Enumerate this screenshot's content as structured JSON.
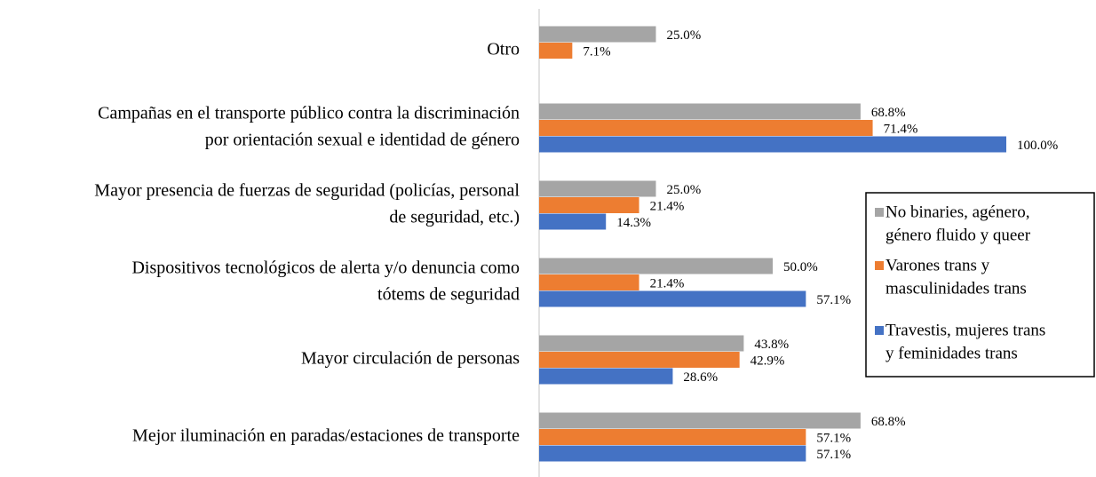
{
  "chart_data": {
    "type": "hbar",
    "categories": [
      [
        "Otro"
      ],
      [
        "Campañas en el transporte público contra la discriminación",
        "por orientación sexual e identidad de género"
      ],
      [
        "Mayor presencia de fuerzas de seguridad (policías, personal",
        "de seguridad, etc.)"
      ],
      [
        "Dispositivos tecnológicos de alerta y/o denuncia como",
        "tótems de seguridad"
      ],
      [
        "Mayor circulación de personas"
      ],
      [
        "Mejor iluminación en paradas/estaciones de transporte"
      ]
    ],
    "series": [
      {
        "name": [
          "No binaries, agénero,",
          "género fluido y queer"
        ],
        "color": "#a5a5a5",
        "values": [
          25.0,
          68.8,
          25.0,
          50.0,
          43.8,
          68.8
        ],
        "value_labels": [
          "25.0%",
          "68.8%",
          "25.0%",
          "50.0%",
          "43.8%",
          "68.8%"
        ]
      },
      {
        "name": [
          "Varones trans y",
          "masculinidades trans"
        ],
        "color": "#ed7d31",
        "values": [
          7.1,
          71.4,
          21.4,
          21.4,
          42.9,
          57.1
        ],
        "value_labels": [
          "7.1%",
          "71.4%",
          "21.4%",
          "21.4%",
          "42.9%",
          "57.1%"
        ]
      },
      {
        "name": [
          "Travestis, mujeres trans",
          "y feminidades trans"
        ],
        "color": "#4472c4",
        "values": [
          null,
          100.0,
          14.3,
          57.1,
          28.6,
          57.1
        ],
        "value_labels": [
          null,
          "100.0%",
          "14.3%",
          "57.1%",
          "28.6%",
          "57.1%"
        ]
      }
    ],
    "xlim": [
      0,
      100
    ],
    "legend": "right"
  }
}
